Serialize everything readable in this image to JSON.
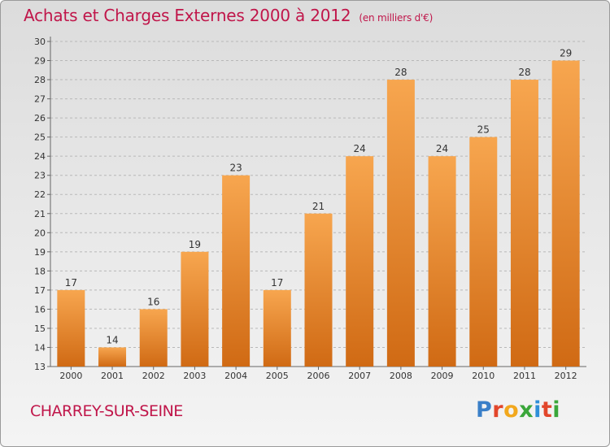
{
  "header": {
    "title": "Achats et Charges Externes 2000 à 2012",
    "subtitle": "(en milliers d'€)"
  },
  "footer": {
    "commune": "CHARREY-SUR-SEINE",
    "logo_letters": [
      "P",
      "r",
      "o",
      "x",
      "i",
      "t",
      "i"
    ],
    "logo_colors": [
      "#3a7fc8",
      "#e2462b",
      "#f2a81d",
      "#3aa63a",
      "#2f8fd8",
      "#e2462b",
      "#3aa63a"
    ]
  },
  "chart_data": {
    "type": "bar",
    "title": "Achats et Charges Externes 2000 à 2012",
    "subtitle": "(en milliers d'€)",
    "categories": [
      "2000",
      "2001",
      "2002",
      "2003",
      "2004",
      "2005",
      "2006",
      "2007",
      "2008",
      "2009",
      "2010",
      "2011",
      "2012"
    ],
    "values": [
      17,
      14,
      16,
      19,
      23,
      17,
      21,
      24,
      28,
      24,
      25,
      28,
      29
    ],
    "ylim": [
      13,
      30
    ],
    "yticks": [
      13,
      14,
      15,
      16,
      17,
      18,
      19,
      20,
      21,
      22,
      23,
      24,
      25,
      26,
      27,
      28,
      29,
      30
    ],
    "grid": "horizontal-dashed",
    "bar_color_top": "#f7a64f",
    "bar_color_bottom": "#d06a14"
  }
}
